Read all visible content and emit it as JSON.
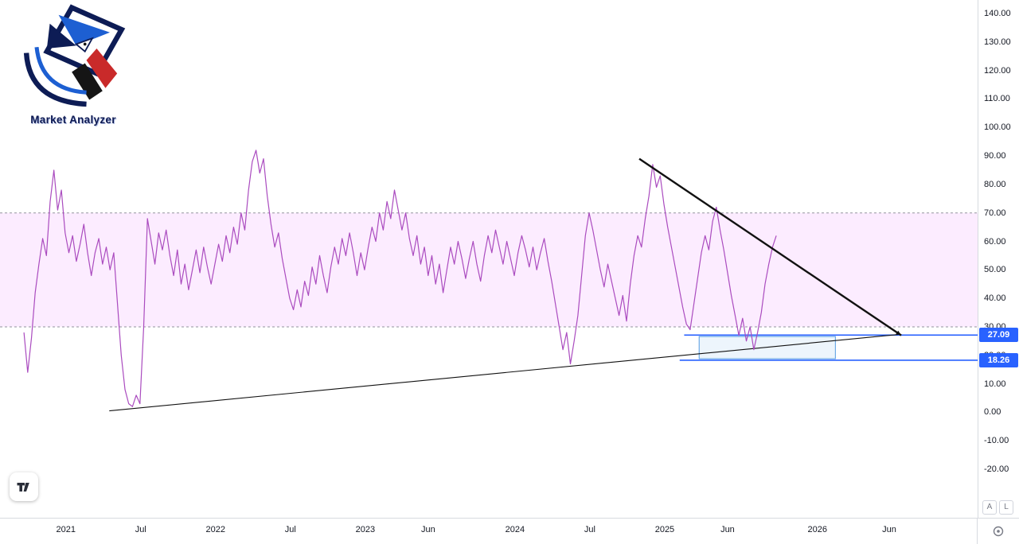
{
  "brand": {
    "title": "Market Analyzer"
  },
  "watermark": {
    "name": "tradingview"
  },
  "price_axis": {
    "ticks": [
      {
        "v": 140,
        "label": "140.00"
      },
      {
        "v": 130,
        "label": "130.00"
      },
      {
        "v": 120,
        "label": "120.00"
      },
      {
        "v": 110,
        "label": "110.00"
      },
      {
        "v": 100,
        "label": "100.00"
      },
      {
        "v": 90,
        "label": "90.00"
      },
      {
        "v": 80,
        "label": "80.00"
      },
      {
        "v": 70,
        "label": "70.00"
      },
      {
        "v": 60,
        "label": "60.00"
      },
      {
        "v": 50,
        "label": "50.00"
      },
      {
        "v": 40,
        "label": "40.00"
      },
      {
        "v": 30,
        "label": "30.00"
      },
      {
        "v": 20,
        "label": "20.00"
      },
      {
        "v": 10,
        "label": "10.00"
      },
      {
        "v": 0,
        "label": "0.00"
      },
      {
        "v": -10,
        "label": "-10.00"
      },
      {
        "v": -20,
        "label": "-20.00"
      }
    ],
    "buttons": {
      "auto": "A",
      "log": "L"
    }
  },
  "time_axis": {
    "ticks": [
      {
        "t": 2021.0,
        "label": "2021"
      },
      {
        "t": 2021.5,
        "label": "Jul"
      },
      {
        "t": 2022.0,
        "label": "2022"
      },
      {
        "t": 2022.5,
        "label": "Jul"
      },
      {
        "t": 2023.0,
        "label": "2023"
      },
      {
        "t": 2023.42,
        "label": "Jun"
      },
      {
        "t": 2024.0,
        "label": "2024"
      },
      {
        "t": 2024.5,
        "label": "Jul"
      },
      {
        "t": 2025.0,
        "label": "2025"
      },
      {
        "t": 2025.42,
        "label": "Jun"
      },
      {
        "t": 2026.02,
        "label": "2026"
      },
      {
        "t": 2026.5,
        "label": "Jun"
      }
    ]
  },
  "chart_data": {
    "type": "line",
    "title": "",
    "xlim": [
      2020.56,
      2027.09
    ],
    "ylim": [
      -20,
      140
    ],
    "band": {
      "upper": 70,
      "lower": 30,
      "fill": "rgba(224,64,251,0.10)",
      "edge_color": "#787b86"
    },
    "series": [
      {
        "name": "oscillator",
        "color": "#aa4bbf",
        "width": 1.2,
        "t_start": 2020.72,
        "dt": 0.025,
        "values": [
          28,
          14,
          26,
          42,
          52,
          61,
          55,
          74,
          85,
          71,
          78,
          63,
          56,
          62,
          53,
          59,
          66,
          56,
          48,
          56,
          61,
          52,
          58,
          50,
          56,
          38,
          20,
          8,
          3,
          2,
          6,
          3,
          30,
          68,
          60,
          52,
          63,
          57,
          64,
          55,
          48,
          57,
          45,
          52,
          43,
          50,
          57,
          49,
          58,
          51,
          45,
          52,
          59,
          53,
          62,
          56,
          65,
          59,
          70,
          64,
          78,
          88,
          92,
          84,
          89,
          76,
          66,
          58,
          63,
          54,
          47,
          40,
          36,
          43,
          37,
          46,
          41,
          51,
          45,
          55,
          48,
          42,
          51,
          58,
          52,
          61,
          55,
          63,
          56,
          48,
          56,
          50,
          58,
          65,
          60,
          70,
          64,
          74,
          68,
          78,
          71,
          64,
          70,
          61,
          55,
          62,
          52,
          58,
          48,
          55,
          45,
          52,
          42,
          50,
          58,
          52,
          60,
          54,
          47,
          54,
          60,
          52,
          46,
          55,
          62,
          56,
          64,
          58,
          52,
          60,
          54,
          48,
          56,
          62,
          57,
          51,
          58,
          50,
          56,
          61,
          53,
          46,
          38,
          30,
          22,
          28,
          17,
          25,
          34,
          48,
          62,
          70,
          64,
          57,
          50,
          44,
          52,
          46,
          40,
          34,
          41,
          32,
          45,
          55,
          62,
          58,
          68,
          76,
          87,
          79,
          83,
          73,
          65,
          58,
          51,
          44,
          37,
          31,
          29,
          38,
          47,
          56,
          62,
          57,
          67,
          72,
          64,
          57,
          49,
          41,
          34,
          27,
          33,
          25,
          30,
          22,
          28,
          35,
          45,
          52,
          58,
          62
        ]
      }
    ],
    "trendlines": [
      {
        "name": "descending-trendline",
        "x1": 2024.83,
        "y1": 89,
        "x2": 2026.58,
        "y2": 27,
        "color": "#111111",
        "width": 2.4,
        "arrow": true
      },
      {
        "name": "ascending-trendline",
        "x1": 2021.29,
        "y1": 0.5,
        "x2": 2026.56,
        "y2": 27.3,
        "color": "#111111",
        "width": 1.1,
        "arrow": false
      }
    ],
    "levels": [
      {
        "label": "27.09",
        "value": 27.09,
        "t_start": 2025.13,
        "color": "#2962ff"
      },
      {
        "label": "18.26",
        "value": 18.26,
        "t_start": 2025.1,
        "color": "#2962ff"
      }
    ],
    "box": {
      "t1": 2025.23,
      "t2": 2026.14,
      "v1": 18.8,
      "v2": 26.6,
      "fill": "rgba(83,155,226,0.10)",
      "border": "#539be2"
    }
  }
}
